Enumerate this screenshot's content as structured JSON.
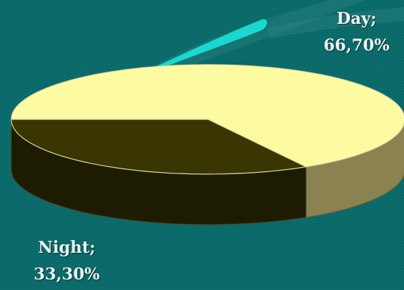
{
  "chart_data": {
    "type": "pie",
    "style": "3d",
    "slices": [
      {
        "label": "Day",
        "value": 66.7,
        "display": "66,70%",
        "top_color": "#fdfba2",
        "side_color": "#8a8250"
      },
      {
        "label": "Night",
        "value": 33.3,
        "display": "33,30%",
        "top_color": "#3a3604",
        "side_color": "#1e1c00"
      }
    ],
    "labels": {
      "day": {
        "name": "Day;",
        "value": "66,70%"
      },
      "night": {
        "name": "Night;",
        "value": "33,30%"
      }
    }
  },
  "theme": {
    "background": "#0b6a6a",
    "accent_streak": "#1ad8d0",
    "label_color": "#f2f2f2"
  }
}
